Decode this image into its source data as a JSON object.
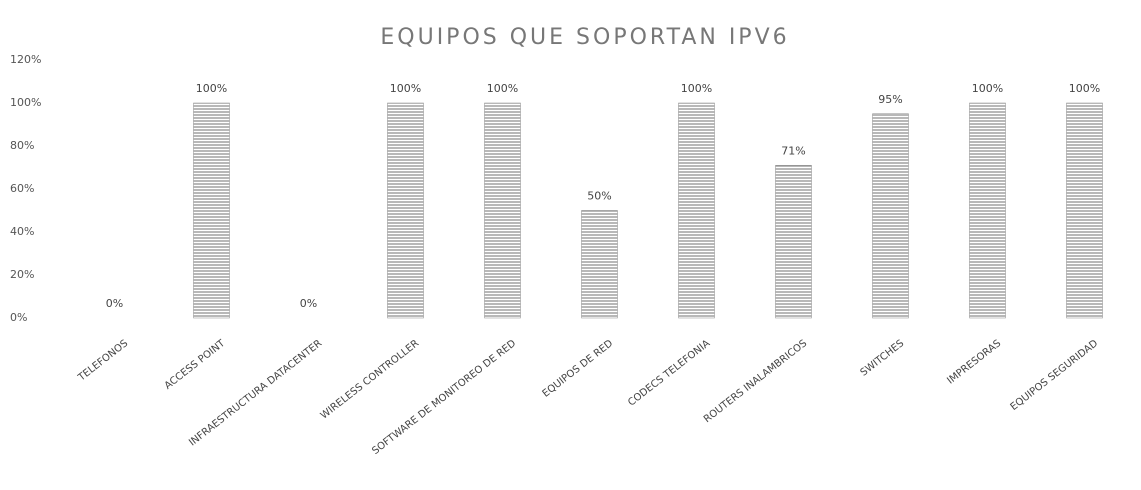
{
  "chart_data": {
    "type": "bar",
    "title": "EQUIPOS QUE SOPORTAN IPV6",
    "categories": [
      "TELEFONOS",
      "ACCESS POINT",
      "INFRAESTRUCTURA DATACENTER",
      "WIRELESS CONTROLLER",
      "SOFTWARE DE MONITOREO DE RED",
      "EQUIPOS DE RED",
      "CODECS TELEFONIA",
      "ROUTERS INALAMBRICOS",
      "SWITCHES",
      "IMPRESORAS",
      "EQUIPOS SEGURIDAD"
    ],
    "values": [
      0,
      100,
      0,
      100,
      100,
      50,
      100,
      71,
      95,
      100,
      100
    ],
    "value_labels": [
      "0%",
      "100%",
      "0%",
      "100%",
      "100%",
      "50%",
      "100%",
      "71%",
      "95%",
      "100%",
      "100%"
    ],
    "color": "#8a8a8a",
    "ylim": [
      0,
      120
    ],
    "yticks": [
      {
        "value": 0,
        "label": "0%"
      },
      {
        "value": 20,
        "label": "20%"
      },
      {
        "value": 40,
        "label": "40%"
      },
      {
        "value": 60,
        "label": "60%"
      },
      {
        "value": 80,
        "label": "80%"
      },
      {
        "value": 100,
        "label": "100%"
      },
      {
        "value": 120,
        "label": "120%"
      }
    ],
    "grid": false
  }
}
